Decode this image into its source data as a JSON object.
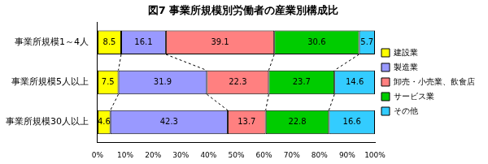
{
  "chart_data": {
    "type": "bar",
    "title": "図7 事業所規模別労働者の産業別構成比",
    "orientation": "horizontal",
    "stacked": true,
    "data_labels": true,
    "legend": "right",
    "grid": false,
    "categories": [
      "事業所規模1～4人",
      "事業所規模5人以上",
      "事業所規模30人以上"
    ],
    "series": [
      {
        "name": "建設業",
        "color": "#ffff00",
        "values": [
          8.5,
          7.5,
          4.6
        ]
      },
      {
        "name": "製造業",
        "color": "#9999ff",
        "values": [
          16.1,
          31.9,
          42.3
        ]
      },
      {
        "name": "卸売・小売業、飲食店",
        "color": "#ff8080",
        "values": [
          39.1,
          22.3,
          13.7
        ]
      },
      {
        "name": "サービス業",
        "color": "#00cc00",
        "values": [
          30.6,
          23.7,
          22.8
        ]
      },
      {
        "name": "その他",
        "color": "#33ccff",
        "values": [
          5.7,
          14.6,
          16.6
        ]
      }
    ],
    "xlim": [
      0,
      100
    ],
    "xticks": [
      {
        "value": 0,
        "label": "0%"
      },
      {
        "value": 10,
        "label": "10%"
      },
      {
        "value": 20,
        "label": "20%"
      },
      {
        "value": 30,
        "label": "30%"
      },
      {
        "value": 40,
        "label": "40%"
      },
      {
        "value": 50,
        "label": "50%"
      },
      {
        "value": 60,
        "label": "60%"
      },
      {
        "value": 70,
        "label": "70%"
      },
      {
        "value": 80,
        "label": "80%"
      },
      {
        "value": 90,
        "label": "90%"
      },
      {
        "value": 100,
        "label": "100%"
      }
    ]
  }
}
